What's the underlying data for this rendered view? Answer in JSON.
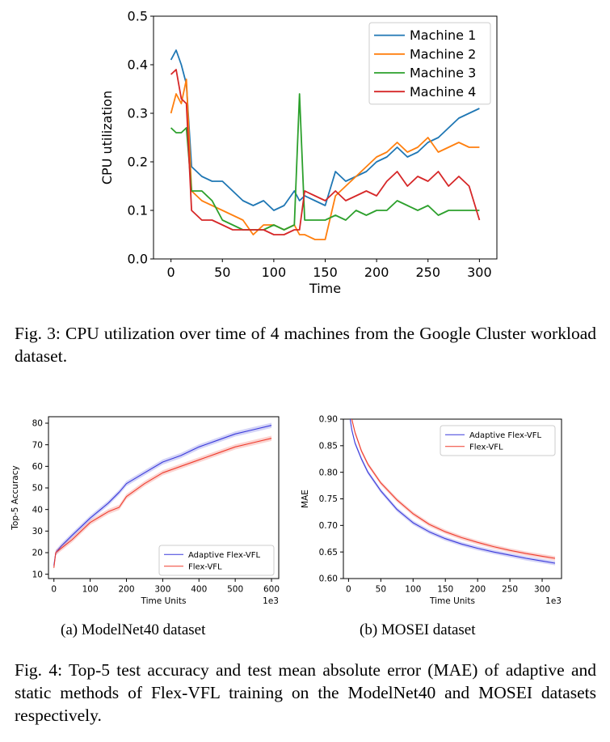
{
  "fig3": {
    "chart_data": {
      "type": "line",
      "xlabel": "Time",
      "ylabel": "CPU utilization",
      "xlim": [
        -17,
        317
      ],
      "ylim": [
        0,
        0.5
      ],
      "xticks": [
        0,
        50,
        100,
        150,
        200,
        250,
        300
      ],
      "yticks": [
        0.0,
        0.1,
        0.2,
        0.3,
        0.4,
        0.5
      ],
      "legend_position": "top-right",
      "x": [
        0,
        5,
        10,
        15,
        20,
        30,
        40,
        50,
        60,
        70,
        80,
        90,
        100,
        110,
        120,
        125,
        130,
        140,
        150,
        160,
        170,
        180,
        190,
        200,
        210,
        220,
        230,
        240,
        250,
        260,
        270,
        280,
        290,
        300
      ],
      "series": [
        {
          "name": "Machine 1",
          "color": "#1f77b4",
          "values": [
            0.41,
            0.43,
            0.4,
            0.36,
            0.19,
            0.17,
            0.16,
            0.16,
            0.14,
            0.12,
            0.11,
            0.12,
            0.1,
            0.11,
            0.14,
            0.12,
            0.13,
            0.12,
            0.11,
            0.18,
            0.16,
            0.17,
            0.18,
            0.2,
            0.21,
            0.23,
            0.21,
            0.22,
            0.24,
            0.25,
            0.27,
            0.29,
            0.3,
            0.31
          ]
        },
        {
          "name": "Machine 2",
          "color": "#ff7f0e",
          "values": [
            0.3,
            0.34,
            0.32,
            0.37,
            0.14,
            0.12,
            0.11,
            0.1,
            0.09,
            0.08,
            0.05,
            0.07,
            0.07,
            0.06,
            0.07,
            0.05,
            0.05,
            0.04,
            0.04,
            0.13,
            0.15,
            0.17,
            0.19,
            0.21,
            0.22,
            0.24,
            0.22,
            0.23,
            0.25,
            0.22,
            0.23,
            0.24,
            0.23,
            0.23
          ]
        },
        {
          "name": "Machine 3",
          "color": "#2ca02c",
          "values": [
            0.27,
            0.26,
            0.26,
            0.27,
            0.14,
            0.14,
            0.12,
            0.08,
            0.07,
            0.06,
            0.06,
            0.06,
            0.07,
            0.06,
            0.07,
            0.34,
            0.08,
            0.08,
            0.08,
            0.09,
            0.08,
            0.1,
            0.09,
            0.1,
            0.1,
            0.12,
            0.11,
            0.1,
            0.11,
            0.09,
            0.1,
            0.1,
            0.1,
            0.1
          ]
        },
        {
          "name": "Machine 4",
          "color": "#d62728",
          "values": [
            0.38,
            0.39,
            0.33,
            0.32,
            0.1,
            0.08,
            0.08,
            0.07,
            0.06,
            0.06,
            0.06,
            0.06,
            0.05,
            0.05,
            0.06,
            0.06,
            0.14,
            0.13,
            0.12,
            0.14,
            0.12,
            0.13,
            0.14,
            0.13,
            0.16,
            0.18,
            0.15,
            0.17,
            0.16,
            0.18,
            0.15,
            0.17,
            0.15,
            0.08
          ]
        }
      ]
    },
    "caption": "Fig. 3: CPU utilization over time of 4 machines from the Google Cluster workload dataset."
  },
  "fig4": {
    "charts": [
      {
        "type": "line",
        "xlabel": "Time Units",
        "ylabel": "Top-5 Accuracy",
        "x_offset_label": "1e3",
        "xlim": [
          -15,
          620
        ],
        "ylim": [
          8,
          83
        ],
        "xticks": [
          0,
          100,
          200,
          300,
          400,
          500,
          600
        ],
        "yticks": [
          10,
          20,
          30,
          40,
          50,
          60,
          70,
          80
        ],
        "legend_position": "bottom-right",
        "x": [
          0,
          5,
          20,
          50,
          100,
          150,
          180,
          200,
          250,
          300,
          350,
          400,
          450,
          500,
          550,
          600
        ],
        "series": [
          {
            "name": "Adaptive Flex-VFL",
            "color": "#3a3adb",
            "values": [
              14,
              20,
              23,
              28,
              36,
              43,
              48,
              52,
              57,
              62,
              65,
              69,
              72,
              75,
              77,
              79
            ]
          },
          {
            "name": "Flex-VFL",
            "color": "#ef3b2c",
            "values": [
              13,
              20,
              22,
              26,
              34,
              39,
              41,
              46,
              52,
              57,
              60,
              63,
              66,
              69,
              71,
              73
            ]
          }
        ]
      },
      {
        "type": "line",
        "xlabel": "Time Units",
        "ylabel": "MAE",
        "x_offset_label": "1e3",
        "xlim": [
          -8,
          330
        ],
        "ylim": [
          0.6,
          0.9
        ],
        "xticks": [
          0,
          50,
          100,
          150,
          200,
          250,
          300
        ],
        "yticks": [
          0.6,
          0.65,
          0.7,
          0.75,
          0.8,
          0.85,
          0.9
        ],
        "legend_position": "top-right",
        "x": [
          0,
          5,
          10,
          20,
          30,
          50,
          75,
          100,
          125,
          150,
          175,
          200,
          225,
          250,
          275,
          300,
          320
        ],
        "series": [
          {
            "name": "Adaptive Flex-VFL",
            "color": "#3a3adb",
            "values": [
              0.92,
              0.88,
              0.855,
              0.825,
              0.8,
              0.765,
              0.73,
              0.705,
              0.688,
              0.675,
              0.665,
              0.657,
              0.65,
              0.644,
              0.638,
              0.633,
              0.629
            ]
          },
          {
            "name": "Flex-VFL",
            "color": "#ef3b2c",
            "values": [
              0.93,
              0.9,
              0.875,
              0.84,
              0.815,
              0.78,
              0.748,
              0.722,
              0.702,
              0.688,
              0.677,
              0.668,
              0.66,
              0.653,
              0.647,
              0.642,
              0.638
            ]
          }
        ]
      }
    ],
    "subcaptions": [
      "(a) ModelNet40 dataset",
      "(b) MOSEI dataset"
    ],
    "caption": "Fig. 4: Top-5 test accuracy and test mean absolute error (MAE) of adaptive and static methods of Flex-VFL training on the ModelNet40 and MOSEI datasets respectively."
  }
}
